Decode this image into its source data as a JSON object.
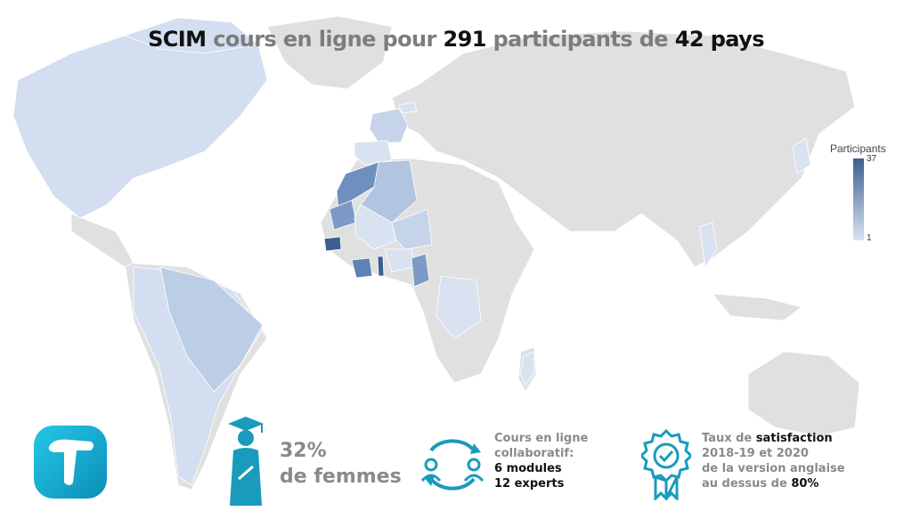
{
  "title": {
    "part1": "SCIM",
    "part2": "cours en ligne pour",
    "part3": "291",
    "part4": "participants de",
    "part5": "42",
    "part6": "pays"
  },
  "legend": {
    "title": "Participants",
    "max": "37",
    "min": "1"
  },
  "colors": {
    "land": "#e0e0e0",
    "low": "#dbe5f2",
    "mid": "#a5bcda",
    "high": "#6f8fbf",
    "max": "#3d5f8f",
    "accent": "#1a9bbc"
  },
  "stats": {
    "women": {
      "line1": "32%",
      "line2": "de femmes"
    },
    "course": {
      "line1": "Cours en ligne",
      "line2": "collaboratif:",
      "line3": "6 modules",
      "line4": "12 experts"
    },
    "satisfaction": {
      "l1a": "Taux de ",
      "l1b": "satisfaction",
      "line2": "2018-19 et 2020",
      "line3": "de la version anglaise",
      "l4a": "au dessus de ",
      "l4b": "80%"
    }
  },
  "icons": [
    "teaching-logo-icon",
    "graduate-woman-icon",
    "collaboration-cycle-icon",
    "award-badge-icon"
  ]
}
